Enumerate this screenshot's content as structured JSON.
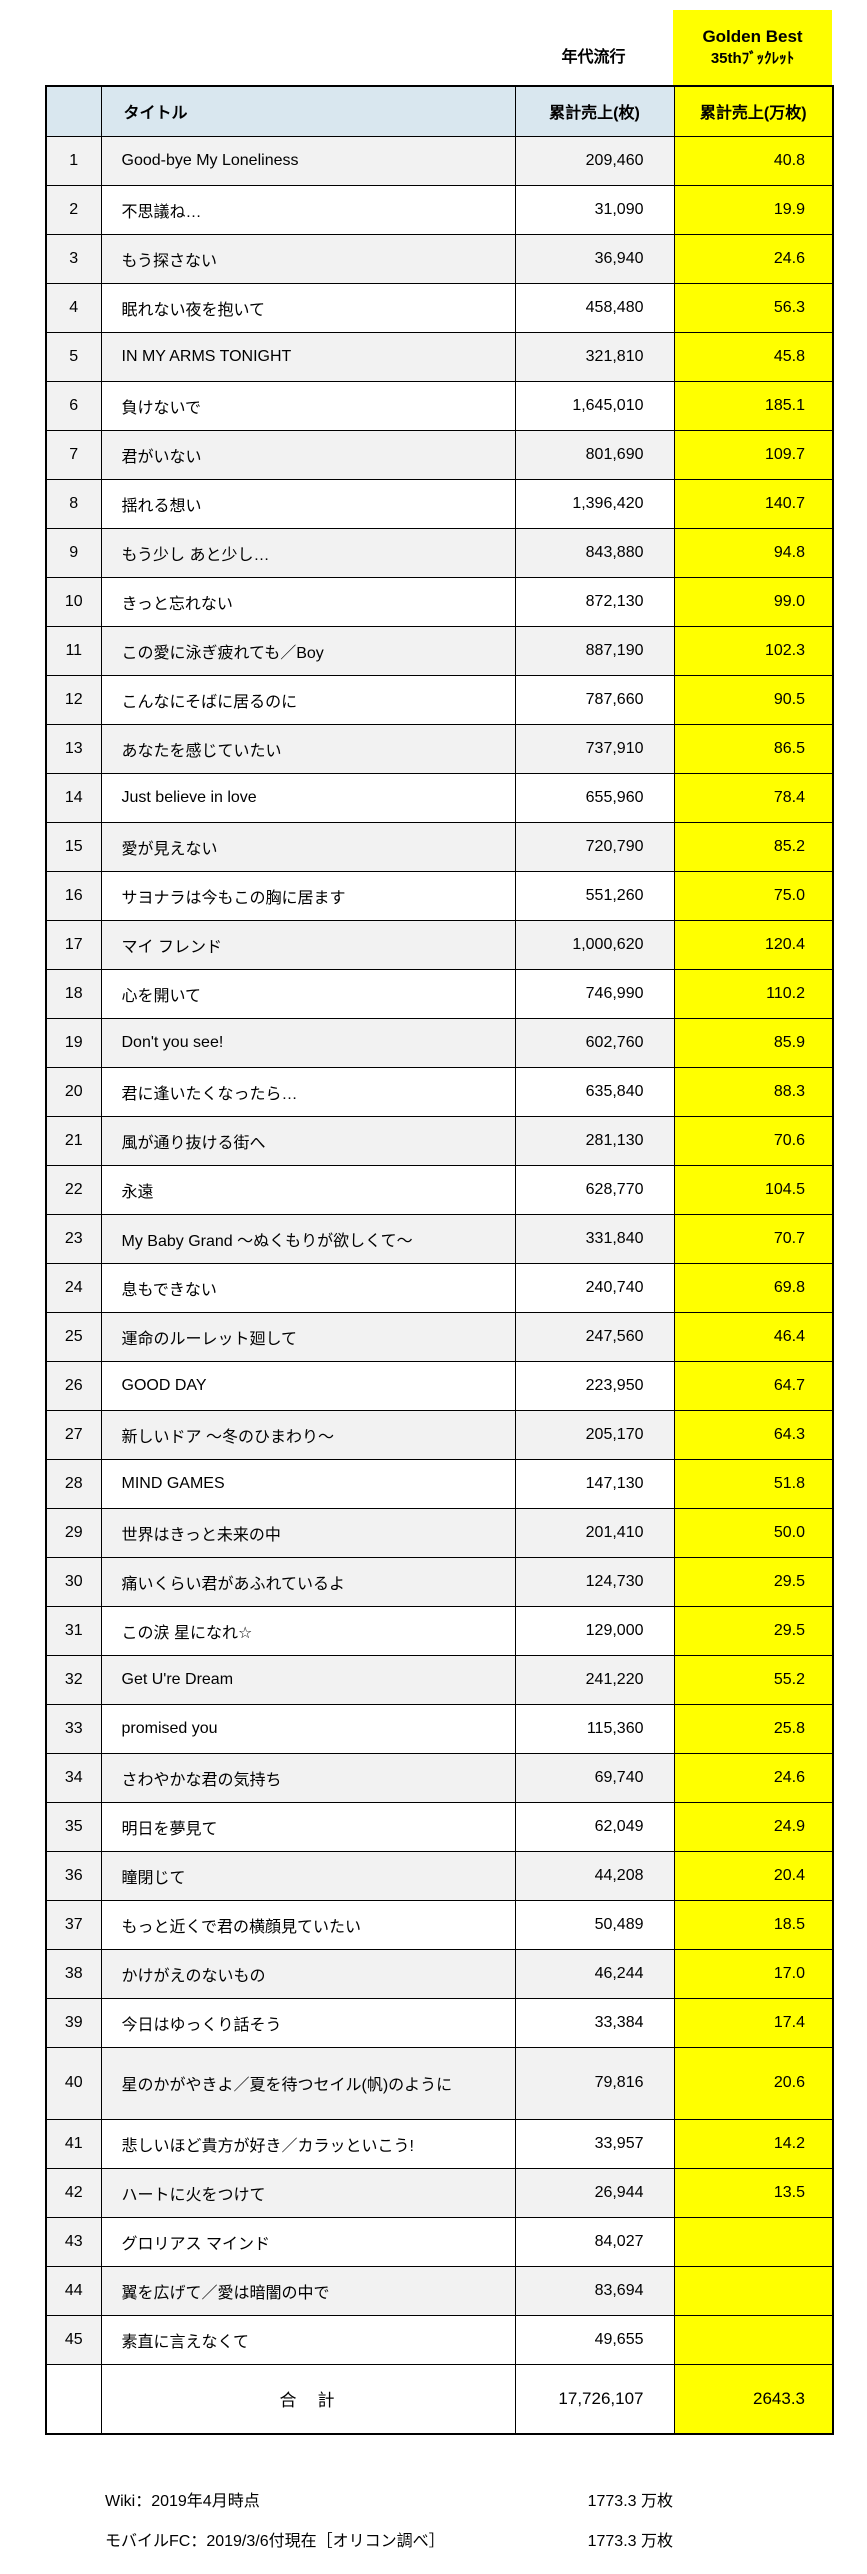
{
  "top_labels": {
    "sales_source": "年代流行",
    "booklet_line1": "Golden Best",
    "booklet_line2": "35thﾌﾞｯｸﾚｯﾄ"
  },
  "table": {
    "headers": {
      "index": "",
      "title": "タイトル",
      "sales": "累計売上(枚)",
      "sales_10k": "累計売上(万枚)"
    },
    "rows": [
      {
        "no": "1",
        "title": "Good-bye My Loneliness",
        "sales": "209,460",
        "sales_10k": "40.8"
      },
      {
        "no": "2",
        "title": "不思議ね…",
        "sales": "31,090",
        "sales_10k": "19.9"
      },
      {
        "no": "3",
        "title": "もう探さない",
        "sales": "36,940",
        "sales_10k": "24.6"
      },
      {
        "no": "4",
        "title": "眠れない夜を抱いて",
        "sales": "458,480",
        "sales_10k": "56.3"
      },
      {
        "no": "5",
        "title": "IN MY ARMS TONIGHT",
        "sales": "321,810",
        "sales_10k": "45.8"
      },
      {
        "no": "6",
        "title": "負けないで",
        "sales": "1,645,010",
        "sales_10k": "185.1"
      },
      {
        "no": "7",
        "title": "君がいない",
        "sales": "801,690",
        "sales_10k": "109.7"
      },
      {
        "no": "8",
        "title": "揺れる想い",
        "sales": "1,396,420",
        "sales_10k": "140.7"
      },
      {
        "no": "9",
        "title": "もう少し あと少し…",
        "sales": "843,880",
        "sales_10k": "94.8"
      },
      {
        "no": "10",
        "title": "きっと忘れない",
        "sales": "872,130",
        "sales_10k": "99.0"
      },
      {
        "no": "11",
        "title": "この愛に泳ぎ疲れても／Boy",
        "sales": "887,190",
        "sales_10k": "102.3"
      },
      {
        "no": "12",
        "title": "こんなにそばに居るのに",
        "sales": "787,660",
        "sales_10k": "90.5"
      },
      {
        "no": "13",
        "title": "あなたを感じていたい",
        "sales": "737,910",
        "sales_10k": "86.5"
      },
      {
        "no": "14",
        "title": "Just believe in love",
        "sales": "655,960",
        "sales_10k": "78.4"
      },
      {
        "no": "15",
        "title": "愛が見えない",
        "sales": "720,790",
        "sales_10k": "85.2"
      },
      {
        "no": "16",
        "title": "サヨナラは今もこの胸に居ます",
        "sales": "551,260",
        "sales_10k": "75.0"
      },
      {
        "no": "17",
        "title": "マイ フレンド",
        "sales": "1,000,620",
        "sales_10k": "120.4"
      },
      {
        "no": "18",
        "title": "心を開いて",
        "sales": "746,990",
        "sales_10k": "110.2"
      },
      {
        "no": "19",
        "title": "Don't you see!",
        "sales": "602,760",
        "sales_10k": "85.9"
      },
      {
        "no": "20",
        "title": "君に逢いたくなったら…",
        "sales": "635,840",
        "sales_10k": "88.3"
      },
      {
        "no": "21",
        "title": "風が通り抜ける街へ",
        "sales": "281,130",
        "sales_10k": "70.6"
      },
      {
        "no": "22",
        "title": "永遠",
        "sales": "628,770",
        "sales_10k": "104.5"
      },
      {
        "no": "23",
        "title": "My Baby Grand ～ぬくもりが欲しくて～",
        "sales": "331,840",
        "sales_10k": "70.7"
      },
      {
        "no": "24",
        "title": "息もできない",
        "sales": "240,740",
        "sales_10k": "69.8"
      },
      {
        "no": "25",
        "title": "運命のルーレット廻して",
        "sales": "247,560",
        "sales_10k": "46.4"
      },
      {
        "no": "26",
        "title": "GOOD DAY",
        "sales": "223,950",
        "sales_10k": "64.7"
      },
      {
        "no": "27",
        "title": "新しいドア ～冬のひまわり～",
        "sales": "205,170",
        "sales_10k": "64.3"
      },
      {
        "no": "28",
        "title": "MIND GAMES",
        "sales": "147,130",
        "sales_10k": "51.8"
      },
      {
        "no": "29",
        "title": "世界はきっと未来の中",
        "sales": "201,410",
        "sales_10k": "50.0"
      },
      {
        "no": "30",
        "title": "痛いくらい君があふれているよ",
        "sales": "124,730",
        "sales_10k": "29.5"
      },
      {
        "no": "31",
        "title": "この涙 星になれ☆",
        "sales": "129,000",
        "sales_10k": "29.5"
      },
      {
        "no": "32",
        "title": "Get U're Dream",
        "sales": "241,220",
        "sales_10k": "55.2"
      },
      {
        "no": "33",
        "title": "promised you",
        "sales": "115,360",
        "sales_10k": "25.8"
      },
      {
        "no": "34",
        "title": "さわやかな君の気持ち",
        "sales": "69,740",
        "sales_10k": "24.6"
      },
      {
        "no": "35",
        "title": "明日を夢見て",
        "sales": "62,049",
        "sales_10k": "24.9"
      },
      {
        "no": "36",
        "title": "瞳閉じて",
        "sales": "44,208",
        "sales_10k": "20.4"
      },
      {
        "no": "37",
        "title": "もっと近くで君の横顔見ていたい",
        "sales": "50,489",
        "sales_10k": "18.5"
      },
      {
        "no": "38",
        "title": "かけがえのないもの",
        "sales": "46,244",
        "sales_10k": "17.0"
      },
      {
        "no": "39",
        "title": "今日はゆっくり話そう",
        "sales": "33,384",
        "sales_10k": "17.4"
      },
      {
        "no": "40",
        "title": "星のかがやきよ／夏を待つセイル(帆)のように",
        "sales": "79,816",
        "sales_10k": "20.6"
      },
      {
        "no": "41",
        "title": "悲しいほど貴方が好き／カラッといこう!",
        "sales": "33,957",
        "sales_10k": "14.2"
      },
      {
        "no": "42",
        "title": "ハートに火をつけて",
        "sales": "26,944",
        "sales_10k": "13.5"
      },
      {
        "no": "43",
        "title": "グロリアス マインド",
        "sales": "84,027",
        "sales_10k": ""
      },
      {
        "no": "44",
        "title": "翼を広げて／愛は暗闇の中で",
        "sales": "83,694",
        "sales_10k": ""
      },
      {
        "no": "45",
        "title": "素直に言えなくて",
        "sales": "49,655",
        "sales_10k": ""
      }
    ],
    "total": {
      "label": "合　計",
      "sales": "17,726,107",
      "sales_10k": "2643.3"
    }
  },
  "footnotes": [
    {
      "label": "Wiki：2019年4月時点",
      "value": "1773.3 万枚"
    },
    {
      "label": "モバイルFC：2019/3/6付現在［オリコン調べ］",
      "value": "1773.3 万枚"
    }
  ],
  "colors": {
    "header_blue": "#d9e7ef",
    "band_gray": "#f2f2f2",
    "highlight_yellow": "#ffff00",
    "border": "#000000"
  }
}
